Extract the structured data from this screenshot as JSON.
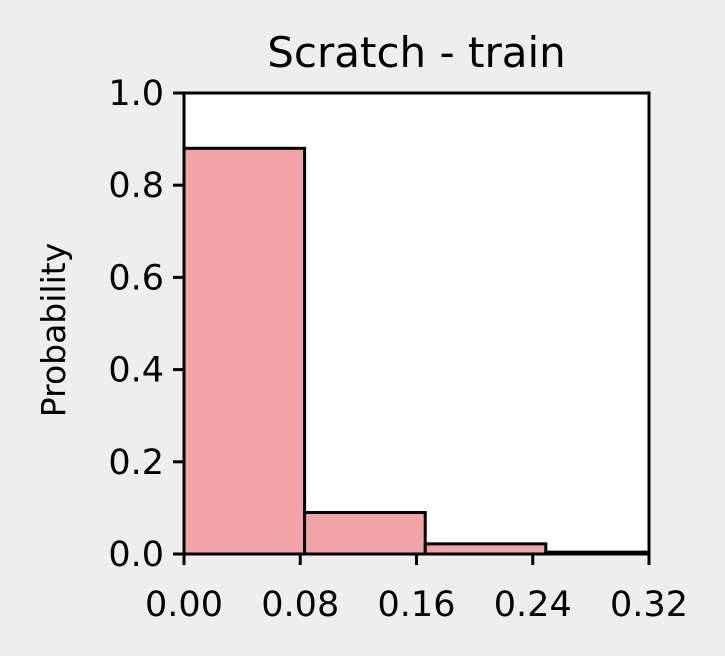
{
  "chart_data": {
    "type": "bar",
    "title": "Scratch - train",
    "xlabel": "",
    "ylabel": "Probability",
    "xlim": [
      0,
      0.32
    ],
    "ylim": [
      0,
      1.0
    ],
    "xticks": [
      "0.00",
      "0.08",
      "0.16",
      "0.24",
      "0.32"
    ],
    "xtick_values": [
      0,
      0.08,
      0.16,
      0.24,
      0.32
    ],
    "yticks": [
      "0.0",
      "0.2",
      "0.4",
      "0.6",
      "0.8",
      "1.0"
    ],
    "ytick_values": [
      0,
      0.2,
      0.4,
      0.6,
      0.8,
      1.0
    ],
    "bins": [
      {
        "x0": 0.0,
        "x1": 0.083,
        "value": 0.88
      },
      {
        "x0": 0.083,
        "x1": 0.166,
        "value": 0.09
      },
      {
        "x0": 0.166,
        "x1": 0.249,
        "value": 0.022
      },
      {
        "x0": 0.249,
        "x1": 0.332,
        "value": 0.004
      }
    ],
    "grid": false,
    "colors": {
      "bar_fill": "#f2a3a5",
      "bar_edge": "#000000",
      "axes_bg": "#ffffff",
      "figure_bg": "#eeeeee"
    }
  }
}
